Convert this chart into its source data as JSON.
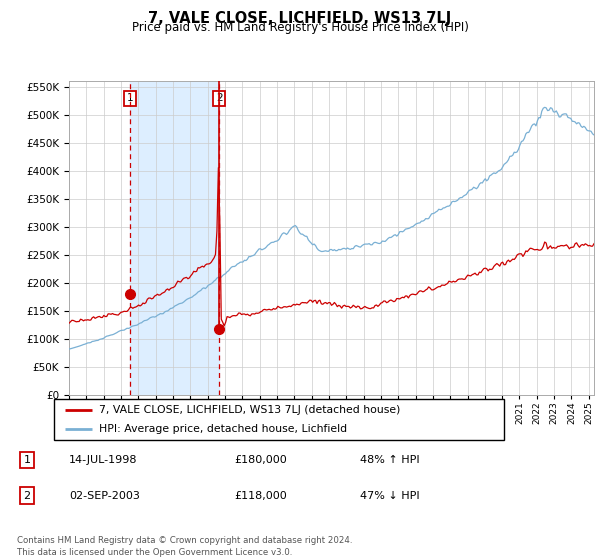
{
  "title": "7, VALE CLOSE, LICHFIELD, WS13 7LJ",
  "subtitle": "Price paid vs. HM Land Registry's House Price Index (HPI)",
  "legend_line1": "7, VALE CLOSE, LICHFIELD, WS13 7LJ (detached house)",
  "legend_line2": "HPI: Average price, detached house, Lichfield",
  "sale1_date": "14-JUL-1998",
  "sale1_price": 180000,
  "sale1_year": 1998.54,
  "sale2_date": "02-SEP-2003",
  "sale2_price": 118000,
  "sale2_year": 2003.67,
  "footer": "Contains HM Land Registry data © Crown copyright and database right 2024.\nThis data is licensed under the Open Government Licence v3.0.",
  "red_color": "#cc0000",
  "blue_color": "#7ab0d4",
  "shade_color": "#ddeeff",
  "box_color": "#cc0000",
  "ylim_max": 560000,
  "xlim_start": 1995.0,
  "xlim_end": 2025.3
}
